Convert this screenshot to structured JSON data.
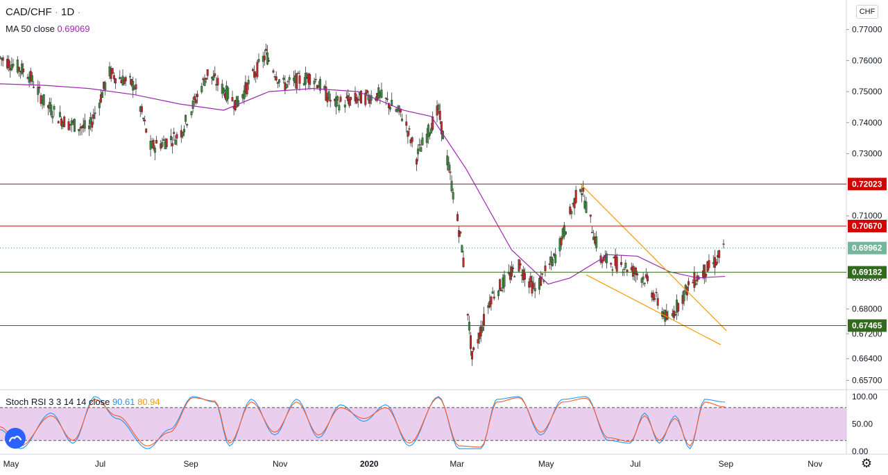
{
  "header": {
    "symbol": "CAD/CHF",
    "interval": "1D",
    "ma_label": "MA 50 close",
    "ma_value": "0.69069",
    "stoch_label": "Stoch RSI 3 3 14 14 close",
    "stoch_k_value": "90.61",
    "stoch_d_value": "80.94",
    "currency": "CHF"
  },
  "colors": {
    "up": "#26a69a",
    "down": "#ef5350",
    "candle_up_body": "#3c8a3c",
    "candle_down_body": "#c62828",
    "ma": "#9c27b0",
    "resistance": "#d50000",
    "support": "#33691e",
    "channel": "#ff9800",
    "stoch_k": "#2196f3",
    "stoch_d": "#ff5722",
    "stoch_band": "#e1bee7"
  },
  "chart_data": [
    {
      "type": "candlestick",
      "title": "CAD/CHF · 1D",
      "y_axis": {
        "ticks": [
          "0.77000",
          "0.76000",
          "0.75000",
          "0.74000",
          "0.73000",
          "0.71000",
          "0.69000",
          "0.68000",
          "0.67200",
          "0.66400",
          "0.65700"
        ],
        "range": [
          0.654,
          0.7795
        ]
      },
      "x_axis": {
        "ticks": [
          "May",
          "Jul",
          "Sep",
          "Nov",
          "2020",
          "Mar",
          "May",
          "Jul",
          "Sep",
          "Nov"
        ],
        "range": [
          "2019-05-01",
          "2020-11-30"
        ]
      },
      "horizontal_levels": [
        {
          "value": 0.72023,
          "label": "0.72023",
          "kind": "resistance"
        },
        {
          "value": 0.7067,
          "label": "0.70670",
          "kind": "resistance"
        },
        {
          "value": 0.69182,
          "label": "0.69182",
          "kind": "support"
        },
        {
          "value": 0.67465,
          "label": "0.67465",
          "kind": "support"
        }
      ],
      "last_price": {
        "value": 0.69962,
        "label": "0.69962"
      },
      "ma50_path": [
        [
          "2019-05-01",
          0.7525
        ],
        [
          "2019-06-01",
          0.752
        ],
        [
          "2019-07-01",
          0.751
        ],
        [
          "2019-08-01",
          0.749
        ],
        [
          "2019-09-01",
          0.746
        ],
        [
          "2019-10-01",
          0.744
        ],
        [
          "2019-11-01",
          0.75
        ],
        [
          "2019-12-01",
          0.751
        ],
        [
          "2020-01-01",
          0.75
        ],
        [
          "2020-02-01",
          0.744
        ],
        [
          "2020-02-20",
          0.742
        ],
        [
          "2020-03-15",
          0.725
        ],
        [
          "2020-04-15",
          0.699
        ],
        [
          "2020-05-10",
          0.688
        ],
        [
          "2020-05-25",
          0.69
        ],
        [
          "2020-06-20",
          0.6975
        ],
        [
          "2020-07-10",
          0.697
        ],
        [
          "2020-08-01",
          0.692
        ],
        [
          "2020-08-20",
          0.69
        ],
        [
          "2020-09-08",
          0.6905
        ]
      ],
      "channel_lines": [
        {
          "from": [
            "2020-06-01",
            0.7203
          ],
          "to": [
            "2020-09-09",
            0.673
          ]
        },
        {
          "from": [
            "2020-06-05",
            0.691
          ],
          "to": [
            "2020-09-05",
            0.6685
          ]
        }
      ],
      "ohlc_anchors": [
        [
          "2019-05-01",
          0.761
        ],
        [
          "2019-05-20",
          0.756
        ],
        [
          "2019-06-01",
          0.746
        ],
        [
          "2019-06-15",
          0.74
        ],
        [
          "2019-07-01",
          0.738
        ],
        [
          "2019-07-15",
          0.756
        ],
        [
          "2019-08-01",
          0.752
        ],
        [
          "2019-08-12",
          0.732
        ],
        [
          "2019-09-01",
          0.736
        ],
        [
          "2019-09-20",
          0.756
        ],
        [
          "2019-10-10",
          0.746
        ],
        [
          "2019-10-30",
          0.762
        ],
        [
          "2019-11-10",
          0.752
        ],
        [
          "2019-12-01",
          0.755
        ],
        [
          "2019-12-15",
          0.746
        ],
        [
          "2020-01-15",
          0.749
        ],
        [
          "2020-02-01",
          0.742
        ],
        [
          "2020-02-10",
          0.729
        ],
        [
          "2020-02-25",
          0.744
        ],
        [
          "2020-03-05",
          0.72
        ],
        [
          "2020-03-12",
          0.7
        ],
        [
          "2020-03-19",
          0.664
        ],
        [
          "2020-04-01",
          0.684
        ],
        [
          "2020-04-20",
          0.694
        ],
        [
          "2020-05-01",
          0.686
        ],
        [
          "2020-05-15",
          0.697
        ],
        [
          "2020-06-01",
          0.72
        ],
        [
          "2020-06-15",
          0.696
        ],
        [
          "2020-07-01",
          0.694
        ],
        [
          "2020-07-15",
          0.69
        ],
        [
          "2020-07-31",
          0.676
        ],
        [
          "2020-08-15",
          0.688
        ],
        [
          "2020-09-01",
          0.695
        ],
        [
          "2020-09-08",
          0.6996
        ]
      ]
    },
    {
      "type": "line",
      "title": "Stoch RSI 3 3 14 14 close",
      "y_axis": {
        "ticks": [
          "100.00",
          "50.00",
          "0.00"
        ],
        "range": [
          -5,
          110
        ]
      },
      "bands": {
        "upper": 80,
        "lower": 20
      },
      "series": [
        {
          "name": "K",
          "anchors": [
            [
              "2019-05-01",
              40
            ],
            [
              "2019-05-15",
              5
            ],
            [
              "2019-06-05",
              70
            ],
            [
              "2019-06-20",
              15
            ],
            [
              "2019-07-05",
              100
            ],
            [
              "2019-07-20",
              60
            ],
            [
              "2019-08-10",
              5
            ],
            [
              "2019-08-25",
              40
            ],
            [
              "2019-09-10",
              100
            ],
            [
              "2019-09-25",
              90
            ],
            [
              "2019-10-05",
              10
            ],
            [
              "2019-10-20",
              95
            ],
            [
              "2019-11-05",
              30
            ],
            [
              "2019-11-20",
              95
            ],
            [
              "2019-12-05",
              25
            ],
            [
              "2019-12-20",
              85
            ],
            [
              "2020-01-05",
              55
            ],
            [
              "2020-01-20",
              85
            ],
            [
              "2020-02-05",
              10
            ],
            [
              "2020-02-25",
              100
            ],
            [
              "2020-03-10",
              5
            ],
            [
              "2020-03-25",
              5
            ],
            [
              "2020-04-05",
              95
            ],
            [
              "2020-04-20",
              100
            ],
            [
              "2020-05-05",
              30
            ],
            [
              "2020-05-20",
              95
            ],
            [
              "2020-06-05",
              100
            ],
            [
              "2020-06-20",
              20
            ],
            [
              "2020-07-05",
              15
            ],
            [
              "2020-07-15",
              70
            ],
            [
              "2020-07-25",
              15
            ],
            [
              "2020-08-05",
              65
            ],
            [
              "2020-08-15",
              5
            ],
            [
              "2020-08-25",
              95
            ],
            [
              "2020-09-08",
              90
            ]
          ]
        },
        {
          "name": "D",
          "anchors": [
            [
              "2019-05-01",
              45
            ],
            [
              "2019-05-15",
              10
            ],
            [
              "2019-06-05",
              65
            ],
            [
              "2019-06-20",
              20
            ],
            [
              "2019-07-05",
              95
            ],
            [
              "2019-07-20",
              65
            ],
            [
              "2019-08-10",
              10
            ],
            [
              "2019-08-25",
              35
            ],
            [
              "2019-09-10",
              98
            ],
            [
              "2019-09-25",
              92
            ],
            [
              "2019-10-05",
              15
            ],
            [
              "2019-10-20",
              90
            ],
            [
              "2019-11-05",
              35
            ],
            [
              "2019-11-20",
              90
            ],
            [
              "2019-12-05",
              30
            ],
            [
              "2019-12-20",
              80
            ],
            [
              "2020-01-05",
              60
            ],
            [
              "2020-01-20",
              80
            ],
            [
              "2020-02-05",
              15
            ],
            [
              "2020-02-25",
              98
            ],
            [
              "2020-03-10",
              10
            ],
            [
              "2020-03-25",
              8
            ],
            [
              "2020-04-05",
              90
            ],
            [
              "2020-04-20",
              98
            ],
            [
              "2020-05-05",
              35
            ],
            [
              "2020-05-20",
              90
            ],
            [
              "2020-06-05",
              97
            ],
            [
              "2020-06-20",
              25
            ],
            [
              "2020-07-05",
              18
            ],
            [
              "2020-07-15",
              65
            ],
            [
              "2020-07-25",
              20
            ],
            [
              "2020-08-05",
              60
            ],
            [
              "2020-08-15",
              10
            ],
            [
              "2020-08-25",
              90
            ],
            [
              "2020-09-08",
              81
            ]
          ]
        }
      ]
    }
  ]
}
